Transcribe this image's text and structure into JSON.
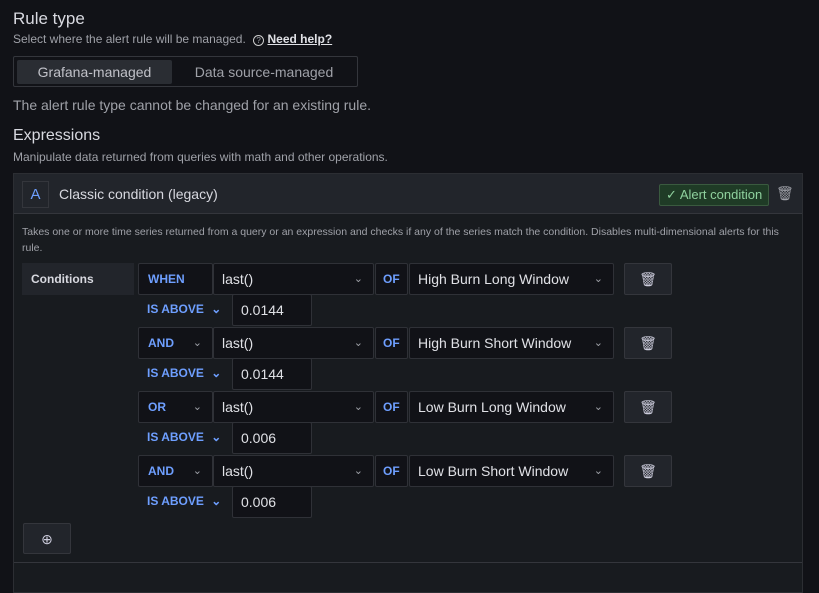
{
  "rule_type": {
    "title": "Rule type",
    "description": "Select where the alert rule will be managed.",
    "help_link": "Need help?",
    "options": [
      "Grafana-managed",
      "Data source-managed"
    ],
    "selected": "Grafana-managed",
    "note": "The alert rule type cannot be changed for an existing rule."
  },
  "expressions": {
    "title": "Expressions",
    "description": "Manipulate data returned from queries with math and other operations."
  },
  "expression": {
    "ref": "A",
    "title": "Classic condition (legacy)",
    "badge": "Alert condition",
    "badge_check": "✓",
    "description": "Takes one or more time series returned from a query or an expression and checks if any of the series match the condition. Disables multi-dimensional alerts for this rule.",
    "conditions_label": "Conditions",
    "conditions": [
      {
        "operator": "WHEN",
        "reducer": "last()",
        "of": "OF",
        "query": "High Burn Long Window",
        "evaluator": "IS ABOVE",
        "value": "0.0144"
      },
      {
        "operator": "AND",
        "reducer": "last()",
        "of": "OF",
        "query": "High Burn Short Window",
        "evaluator": "IS ABOVE",
        "value": "0.0144"
      },
      {
        "operator": "OR",
        "reducer": "last()",
        "of": "OF",
        "query": "Low Burn Long Window",
        "evaluator": "IS ABOVE",
        "value": "0.006"
      },
      {
        "operator": "AND",
        "reducer": "last()",
        "of": "OF",
        "query": "Low Burn Short Window",
        "evaluator": "IS ABOVE",
        "value": "0.006"
      }
    ]
  },
  "colors": {
    "accent": "#6e9fff",
    "success_bg": "#1f3b26",
    "success_text": "#8fd19e"
  }
}
